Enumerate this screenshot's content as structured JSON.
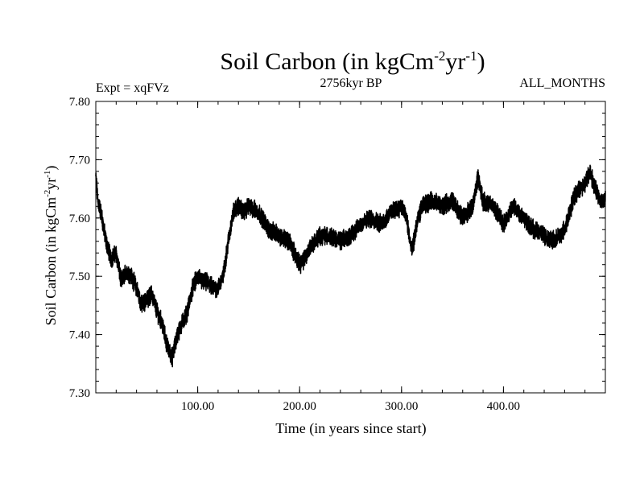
{
  "chart_data": {
    "type": "line",
    "title_main": "Soil Carbon (in kgCm",
    "title_sup1": "-2",
    "title_mid": "yr",
    "title_sup2": "-1",
    "title_end": ")",
    "subtitle_left": "Expt = xqFVz",
    "subtitle_center": "2756kyr BP",
    "subtitle_right": "ALL_MONTHS",
    "xlabel": "Time (in years since start)",
    "ylabel_main": "Soil Carbon (in kgCm",
    "ylabel_sup1": "-2",
    "ylabel_mid": "yr",
    "ylabel_sup2": "-1",
    "ylabel_end": ")",
    "xlim": [
      0,
      500
    ],
    "ylim": [
      7.3,
      7.8
    ],
    "x_ticks": [
      100,
      200,
      300,
      400
    ],
    "x_tick_labels": [
      "100.00",
      "200.00",
      "300.00",
      "400.00"
    ],
    "y_ticks": [
      7.3,
      7.4,
      7.5,
      7.6,
      7.7,
      7.8
    ],
    "y_tick_labels": [
      "7.30",
      "7.40",
      "7.50",
      "7.60",
      "7.70",
      "7.80"
    ],
    "line_color": "#000000",
    "noise_amplitude": 0.012,
    "series": [
      {
        "name": "soil_carbon",
        "x": [
          0,
          2,
          5,
          10,
          15,
          20,
          25,
          30,
          35,
          40,
          45,
          50,
          55,
          60,
          65,
          70,
          75,
          80,
          85,
          90,
          95,
          100,
          105,
          110,
          115,
          120,
          125,
          130,
          135,
          140,
          145,
          150,
          160,
          170,
          180,
          190,
          200,
          205,
          210,
          220,
          230,
          240,
          250,
          260,
          270,
          280,
          290,
          300,
          305,
          310,
          315,
          320,
          330,
          340,
          350,
          360,
          370,
          375,
          380,
          390,
          400,
          410,
          420,
          430,
          440,
          450,
          460,
          470,
          480,
          485,
          490,
          495,
          500
        ],
        "values": [
          7.67,
          7.63,
          7.61,
          7.56,
          7.53,
          7.54,
          7.49,
          7.51,
          7.5,
          7.48,
          7.45,
          7.46,
          7.47,
          7.44,
          7.42,
          7.38,
          7.36,
          7.4,
          7.42,
          7.44,
          7.48,
          7.5,
          7.49,
          7.49,
          7.48,
          7.48,
          7.5,
          7.56,
          7.61,
          7.62,
          7.61,
          7.62,
          7.61,
          7.58,
          7.57,
          7.56,
          7.52,
          7.53,
          7.55,
          7.57,
          7.57,
          7.56,
          7.57,
          7.59,
          7.6,
          7.59,
          7.61,
          7.62,
          7.6,
          7.54,
          7.59,
          7.62,
          7.63,
          7.62,
          7.63,
          7.6,
          7.62,
          7.67,
          7.63,
          7.62,
          7.59,
          7.62,
          7.6,
          7.58,
          7.57,
          7.56,
          7.58,
          7.64,
          7.66,
          7.68,
          7.65,
          7.63,
          7.63
        ]
      }
    ]
  }
}
